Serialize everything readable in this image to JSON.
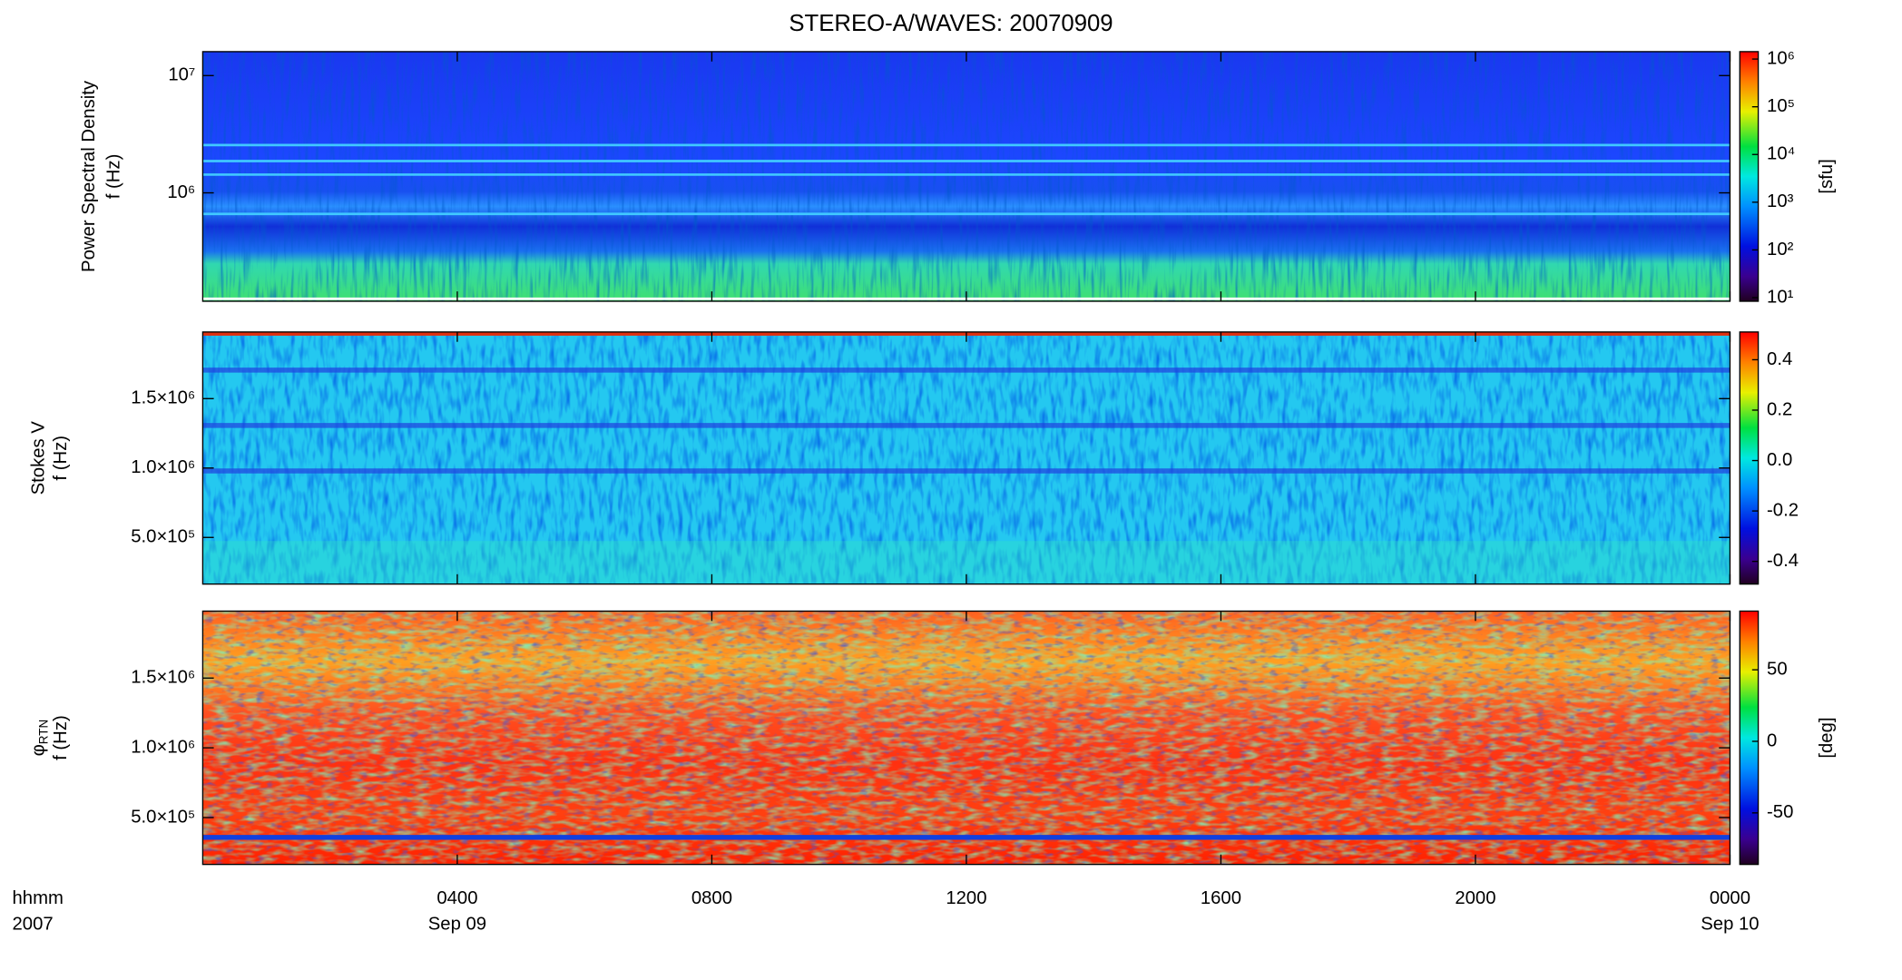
{
  "title": "STEREO-A/WAVES: 20070909",
  "x_axis": {
    "xlim": [
      0,
      24
    ],
    "xticks": [
      {
        "value": 4,
        "label": "0400"
      },
      {
        "value": 8,
        "label": "0800"
      },
      {
        "value": 12,
        "label": "1200"
      },
      {
        "value": 16,
        "label": "1600"
      },
      {
        "value": 20,
        "label": "2000"
      },
      {
        "value": 24,
        "label": "0000"
      }
    ],
    "xtick_dates": [
      {
        "value": 4,
        "label": "Sep 09"
      },
      {
        "value": 24,
        "label": "Sep 10"
      }
    ],
    "label": "hhmm",
    "year_label": "2007"
  },
  "chart_data": [
    {
      "type": "heatmap",
      "ylabel": "Power Spectral Density",
      "ylabel2": "f (Hz)",
      "ylog": true,
      "ylim": [
        119000,
        16000000
      ],
      "yticks": [
        {
          "value": 1000000,
          "label": "10⁶"
        },
        {
          "value": 10000000,
          "label": "10⁷"
        }
      ],
      "clog": true,
      "clim": [
        8.4,
        1430000
      ],
      "cticks": [
        {
          "value": 10,
          "label": "10¹"
        },
        {
          "value": 100,
          "label": "10²"
        },
        {
          "value": 1000,
          "label": "10³"
        },
        {
          "value": 10000,
          "label": "10⁴"
        },
        {
          "value": 100000,
          "label": "10⁵"
        },
        {
          "value": 1000000,
          "label": "10⁶"
        }
      ],
      "clabel": "[sfu]"
    },
    {
      "type": "heatmap",
      "ylabel": "Stokes V",
      "ylabel2": "f (Hz)",
      "ylog": false,
      "ylim": [
        164000,
        1980000
      ],
      "yticks": [
        {
          "value": 500000,
          "label": "5.0×10⁵"
        },
        {
          "value": 1000000,
          "label": "1.0×10⁶"
        },
        {
          "value": 1500000,
          "label": "1.5×10⁶"
        }
      ],
      "clog": false,
      "clim": [
        -0.49,
        0.51
      ],
      "cticks": [
        {
          "value": -0.4,
          "label": "-0.4"
        },
        {
          "value": -0.2,
          "label": "-0.2"
        },
        {
          "value": 0,
          "label": "0.0"
        },
        {
          "value": 0.2,
          "label": "0.2"
        },
        {
          "value": 0.4,
          "label": "0.4"
        }
      ]
    },
    {
      "type": "heatmap",
      "ylabel": "φ",
      "ylabel_subscript": "RTN",
      "ylabel2": "f (Hz)",
      "ylog": false,
      "ylim": [
        164000,
        1980000
      ],
      "yticks": [
        {
          "value": 500000,
          "label": "5.0×10⁵"
        },
        {
          "value": 1000000,
          "label": "1.0×10⁶"
        },
        {
          "value": 1500000,
          "label": "1.5×10⁶"
        }
      ],
      "clog": false,
      "clim": [
        -86,
        91
      ],
      "cticks": [
        -50,
        0,
        50
      ],
      "clabel": "[deg]"
    }
  ]
}
